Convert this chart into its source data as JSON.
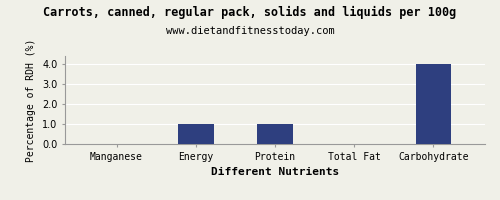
{
  "title": "Carrots, canned, regular pack, solids and liquids per 100g",
  "subtitle": "www.dietandfitnesstoday.com",
  "categories": [
    "Manganese",
    "Energy",
    "Protein",
    "Total Fat",
    "Carbohydrate"
  ],
  "values": [
    0.0,
    1.0,
    1.0,
    0.0,
    4.0
  ],
  "bar_color": "#2e3f7f",
  "xlabel": "Different Nutrients",
  "ylabel": "Percentage of RDH (%)",
  "ylim": [
    0.0,
    4.4
  ],
  "yticks": [
    0.0,
    1.0,
    2.0,
    3.0,
    4.0
  ],
  "background_color": "#f0f0e8",
  "plot_bg_color": "#f0f0e8",
  "title_fontsize": 8.5,
  "subtitle_fontsize": 7.5,
  "xlabel_fontsize": 8,
  "ylabel_fontsize": 7,
  "tick_fontsize": 7,
  "bar_width": 0.45
}
